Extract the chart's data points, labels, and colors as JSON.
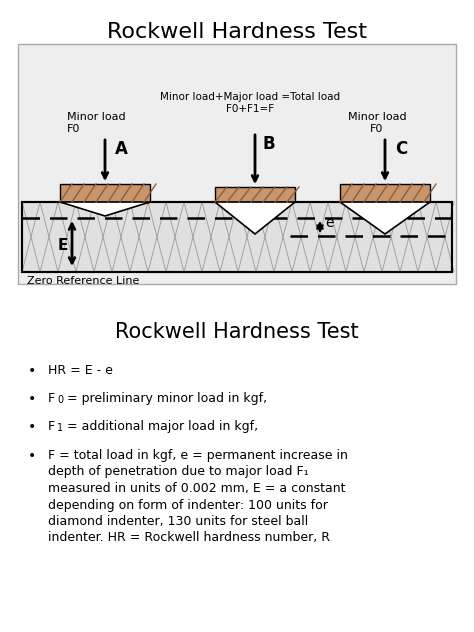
{
  "title_top": "Rockwell Hardness Test",
  "title_bottom": "Rockwell Hardness Test",
  "white_bg": "#ffffff",
  "diagram_bg": "#eeeeee",
  "material_color": "#e0e0e0",
  "indenter_top_color": "#c8956c",
  "indenter_hatch_color": "#8B5E3C",
  "text_minor_load_left": "Minor load\nF0",
  "text_major_load": "Minor load+Major load =Total load\nF0+F1=F",
  "text_minor_load_right": "Minor load\nF0",
  "text_zero_ref": "Zero Reference Line",
  "label_A": "A",
  "label_B": "B",
  "label_C": "C",
  "label_E": "E",
  "label_e": "e",
  "bullet_1": "HR = E - e",
  "bullet_2a": "F",
  "bullet_2b": "0",
  "bullet_2c": " = preliminary minor load in kgf,",
  "bullet_3a": "F",
  "bullet_3b": "1",
  "bullet_3c": " = additional major load in kgf,",
  "bullet_4": "F = total load in kgf, e = permanent increase in\ndepth of penetration due to major load F",
  "bullet_4b": "1",
  "bullet_4c": "\nmeasured in units of 0.002 mm, E = a constant\ndepending on form of indenter: 100 units for\ndiamond indenter, 130 units for steel ball\nindenter. HR = Rockwell hardness number, R"
}
